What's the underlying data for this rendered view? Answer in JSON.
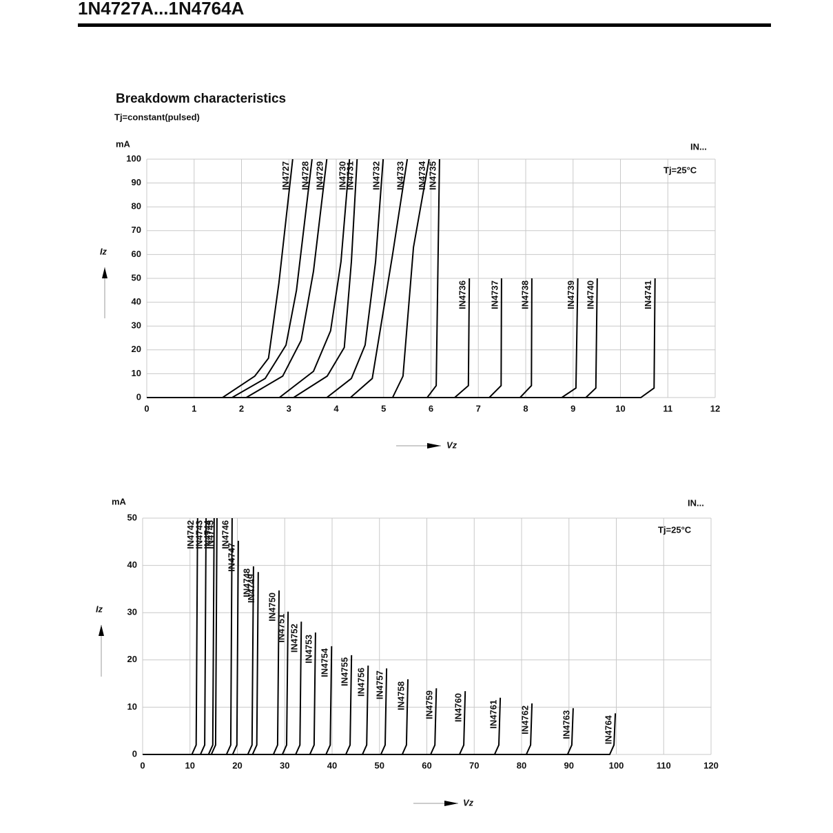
{
  "header": {
    "title": "1N4727A...1N4764A"
  },
  "chart_data": [
    {
      "type": "line",
      "title": "Breakdowm characteristics",
      "subtitle": "Tj=constant(pulsed)",
      "y_unit": "mA",
      "ylabel": "Iz",
      "xlabel": "Vz",
      "corner_label": "IN...",
      "annotation": "Tj=25°C",
      "xlim": [
        0,
        12
      ],
      "xticks": [
        0,
        1,
        2,
        3,
        4,
        5,
        6,
        7,
        8,
        9,
        10,
        11,
        12
      ],
      "ylim": [
        0,
        100
      ],
      "yticks": [
        0,
        10,
        20,
        30,
        40,
        50,
        60,
        70,
        80,
        90,
        100
      ],
      "grid": true,
      "series": [
        {
          "name": "IN4727",
          "color": "#000000",
          "x": [
            0,
            1.6,
            2.28,
            2.57,
            2.79,
            3.08
          ],
          "values": [
            0,
            0,
            9,
            16.5,
            48,
            100
          ]
        },
        {
          "name": "IN4728",
          "color": "#000000",
          "x": [
            0,
            1.8,
            2.5,
            2.94,
            3.16,
            3.49
          ],
          "values": [
            0,
            0,
            8,
            22,
            45,
            100
          ]
        },
        {
          "name": "IN4729",
          "color": "#000000",
          "x": [
            0,
            2.1,
            2.87,
            3.26,
            3.52,
            3.8
          ],
          "values": [
            0,
            0,
            9,
            24,
            53,
            100
          ]
        },
        {
          "name": "IN4730",
          "color": "#000000",
          "x": [
            0,
            2.8,
            3.52,
            3.88,
            4.1,
            4.28
          ],
          "values": [
            0,
            0,
            11,
            28,
            57,
            100
          ]
        },
        {
          "name": "IN4731",
          "color": "#000000",
          "x": [
            0,
            3.1,
            3.81,
            4.17,
            4.32,
            4.44
          ],
          "values": [
            0,
            0,
            9,
            21,
            57,
            100
          ]
        },
        {
          "name": "IN4732",
          "color": "#000000",
          "x": [
            0,
            3.8,
            4.32,
            4.61,
            4.83,
            4.99
          ],
          "values": [
            0,
            0,
            8,
            22,
            57,
            100
          ]
        },
        {
          "name": "IN4733",
          "color": "#000000",
          "x": [
            0,
            4.3,
            4.76,
            5.19,
            5.5
          ],
          "values": [
            0,
            0,
            8,
            60,
            100
          ]
        },
        {
          "name": "IN4734",
          "color": "#000000",
          "x": [
            0,
            5.19,
            5.41,
            5.63,
            5.96
          ],
          "values": [
            0,
            0,
            9,
            63,
            100
          ]
        },
        {
          "name": "IN4735",
          "color": "#000000",
          "x": [
            0,
            5.92,
            6.11,
            6.18
          ],
          "values": [
            0,
            0,
            5,
            100
          ]
        },
        {
          "name": "IN4736",
          "color": "#000000",
          "x": [
            0,
            6.5,
            6.79,
            6.81
          ],
          "values": [
            0,
            0,
            5,
            50
          ]
        },
        {
          "name": "IN4737",
          "color": "#000000",
          "x": [
            0,
            7.23,
            7.48,
            7.49
          ],
          "values": [
            0,
            0,
            5,
            50
          ]
        },
        {
          "name": "IN4738",
          "color": "#000000",
          "x": [
            0,
            7.88,
            8.12,
            8.13
          ],
          "values": [
            0,
            0,
            5,
            50
          ]
        },
        {
          "name": "IN4739",
          "color": "#000000",
          "x": [
            0,
            8.76,
            9.06,
            9.1
          ],
          "values": [
            0,
            0,
            4,
            50
          ]
        },
        {
          "name": "IN4740",
          "color": "#000000",
          "x": [
            0,
            9.27,
            9.48,
            9.51
          ],
          "values": [
            0,
            0,
            4,
            50
          ]
        },
        {
          "name": "IN4741",
          "color": "#000000",
          "x": [
            0,
            10.43,
            10.71,
            10.73
          ],
          "values": [
            0,
            0,
            4,
            50
          ]
        }
      ]
    },
    {
      "type": "line",
      "y_unit": "mA",
      "ylabel": "Iz",
      "xlabel": "Vz",
      "corner_label": "IN...",
      "annotation": "Tj=25°C",
      "xlim": [
        0,
        120
      ],
      "xticks": [
        0,
        10,
        20,
        30,
        40,
        50,
        60,
        70,
        80,
        90,
        100,
        110,
        120
      ],
      "ylim": [
        0,
        50
      ],
      "yticks": [
        0,
        10,
        20,
        30,
        40,
        50
      ],
      "grid": true,
      "series": [
        {
          "name": "IN4742",
          "color": "#000000",
          "x": [
            0,
            10.4,
            11.3,
            11.6
          ],
          "values": [
            0,
            0,
            2,
            50
          ]
        },
        {
          "name": "IN4743",
          "color": "#000000",
          "x": [
            0,
            12.2,
            13.1,
            13.4
          ],
          "values": [
            0,
            0,
            2,
            50
          ]
        },
        {
          "name": "IN4744",
          "color": "#000000",
          "x": [
            0,
            13.9,
            14.8,
            15.1
          ],
          "values": [
            0,
            0,
            2,
            50
          ]
        },
        {
          "name": "IN4745",
          "color": "#000000",
          "x": [
            0,
            14.5,
            15.4,
            15.7
          ],
          "values": [
            0,
            0,
            2,
            50
          ]
        },
        {
          "name": "IN4746",
          "color": "#000000",
          "x": [
            0,
            17.7,
            18.6,
            18.9
          ],
          "values": [
            0,
            0,
            2,
            50
          ]
        },
        {
          "name": "IN4747",
          "color": "#000000",
          "x": [
            0,
            19.0,
            19.9,
            20.2
          ],
          "values": [
            0,
            0,
            2,
            45.2
          ]
        },
        {
          "name": "IN4748",
          "color": "#000000",
          "x": [
            0,
            22.2,
            23.1,
            23.4
          ],
          "values": [
            0,
            0,
            2,
            39.8
          ]
        },
        {
          "name": "IN4749",
          "color": "#000000",
          "x": [
            0,
            23.2,
            24.1,
            24.4
          ],
          "values": [
            0,
            0,
            2,
            38.6
          ]
        },
        {
          "name": "IN4750",
          "color": "#000000",
          "x": [
            0,
            27.6,
            28.5,
            28.8
          ],
          "values": [
            0,
            0,
            2,
            34.7
          ]
        },
        {
          "name": "IN4751",
          "color": "#000000",
          "x": [
            0,
            29.5,
            30.4,
            30.7
          ],
          "values": [
            0,
            0,
            2,
            30.2
          ]
        },
        {
          "name": "IN4752",
          "color": "#000000",
          "x": [
            0,
            32.3,
            33.2,
            33.5
          ],
          "values": [
            0,
            0,
            2,
            28.1
          ]
        },
        {
          "name": "IN4753",
          "color": "#000000",
          "x": [
            0,
            35.3,
            36.2,
            36.5
          ],
          "values": [
            0,
            0,
            2,
            25.8
          ]
        },
        {
          "name": "IN4754",
          "color": "#000000",
          "x": [
            0,
            38.7,
            39.6,
            39.9
          ],
          "values": [
            0,
            0,
            2,
            22.9
          ]
        },
        {
          "name": "IN4755",
          "color": "#000000",
          "x": [
            0,
            42.9,
            43.8,
            44.1
          ],
          "values": [
            0,
            0,
            2,
            21
          ]
        },
        {
          "name": "IN4756",
          "color": "#000000",
          "x": [
            0,
            46.4,
            47.3,
            47.6
          ],
          "values": [
            0,
            0,
            2,
            18.8
          ]
        },
        {
          "name": "IN4757",
          "color": "#000000",
          "x": [
            0,
            50.3,
            51.2,
            51.5
          ],
          "values": [
            0,
            0,
            2,
            18.2
          ]
        },
        {
          "name": "IN4758",
          "color": "#000000",
          "x": [
            0,
            54.8,
            55.7,
            56
          ],
          "values": [
            0,
            0,
            2,
            15.9
          ]
        },
        {
          "name": "IN4759",
          "color": "#000000",
          "x": [
            0,
            60.8,
            61.7,
            62
          ],
          "values": [
            0,
            0,
            2,
            14
          ]
        },
        {
          "name": "IN4760",
          "color": "#000000",
          "x": [
            0,
            66.9,
            67.8,
            68.1
          ],
          "values": [
            0,
            0,
            2,
            13.4
          ]
        },
        {
          "name": "IN4761",
          "color": "#000000",
          "x": [
            0,
            74.3,
            75.2,
            75.5
          ],
          "values": [
            0,
            0,
            2,
            12
          ]
        },
        {
          "name": "IN4762",
          "color": "#000000",
          "x": [
            0,
            81.0,
            81.9,
            82.2
          ],
          "values": [
            0,
            0,
            2,
            10.8
          ]
        },
        {
          "name": "IN4763",
          "color": "#000000",
          "x": [
            0,
            89.7,
            90.6,
            90.9
          ],
          "values": [
            0,
            0,
            2,
            9.8
          ]
        },
        {
          "name": "IN4764",
          "color": "#000000",
          "x": [
            0,
            98.6,
            99.5,
            99.8
          ],
          "values": [
            0,
            0,
            2,
            8.7
          ]
        }
      ]
    }
  ]
}
